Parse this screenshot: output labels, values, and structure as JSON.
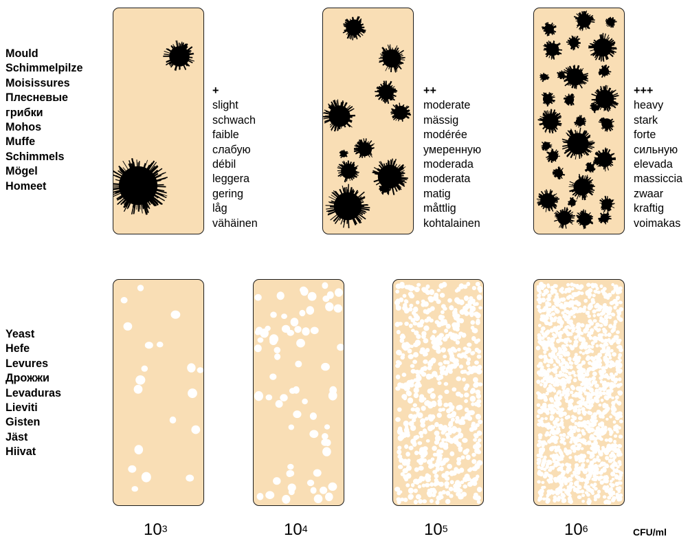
{
  "mould": {
    "names": [
      "Mould",
      "Schimmelpilze",
      "Moisissures",
      "Плесневые",
      "грибки",
      "Mohos",
      "Muffe",
      "Schimmels",
      "Mögel",
      "Homeet"
    ],
    "ratings": [
      {
        "symbol": "+",
        "words": [
          "slight",
          "schwach",
          "faible",
          "слабую",
          "débil",
          "leggera",
          "gering",
          "låg",
          "vähäinen"
        ]
      },
      {
        "symbol": "++",
        "words": [
          "moderate",
          "mässig",
          "modérée",
          "умеренную",
          "moderada",
          "moderata",
          "matig",
          "måttlig",
          "kohtalainen"
        ]
      },
      {
        "symbol": "+++",
        "words": [
          "heavy",
          "stark",
          "forte",
          "сильную",
          "elevada",
          "massiccia",
          "zwaar",
          "kraftig",
          "voimakas"
        ]
      }
    ]
  },
  "yeast": {
    "names": [
      "Yeast",
      "Hefe",
      "Levures",
      "Дрожжи",
      "Levaduras",
      "Lieviti",
      "Gisten",
      "Jäst",
      "Hiivat"
    ]
  },
  "scale": {
    "levels": [
      {
        "base": "10",
        "exp": "3"
      },
      {
        "base": "10",
        "exp": "4"
      },
      {
        "base": "10",
        "exp": "5"
      },
      {
        "base": "10",
        "exp": "6"
      }
    ],
    "unit": "CFU/ml"
  },
  "colors": {
    "strip_fill": "#f9deb5",
    "strip_border": "#1a1a1a",
    "colony_mould": "#000000",
    "colony_yeast": "#ffffff"
  },
  "densities": {
    "yeast_colonies_per_strip": [
      20,
      70,
      650,
      1500
    ],
    "mould_colonies_per_strip": [
      2,
      11,
      30
    ]
  }
}
